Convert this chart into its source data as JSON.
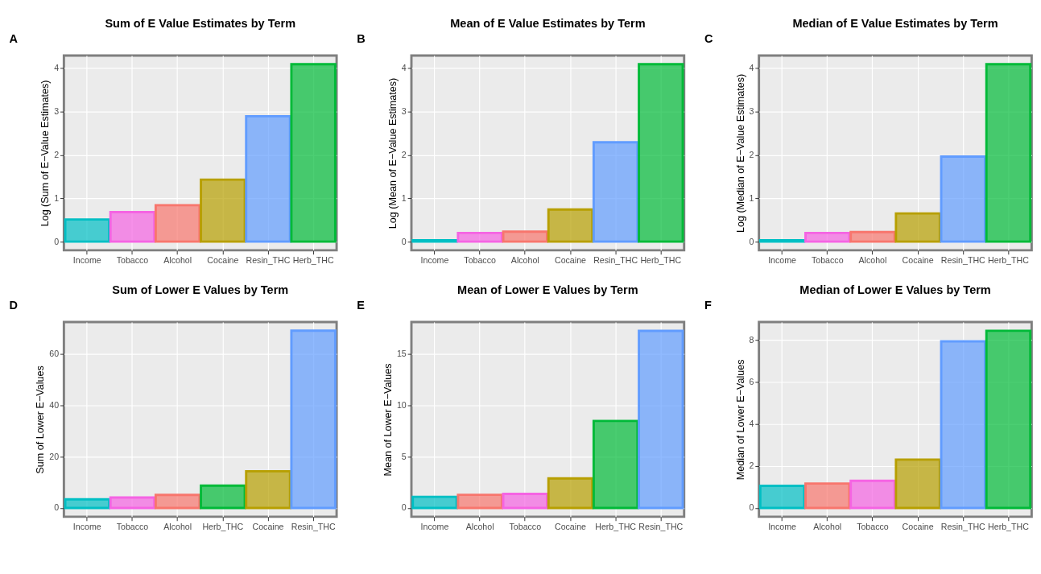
{
  "chart_data": [
    {
      "type": "bar",
      "title": "Sum of E  Value Estimates by Term",
      "ylabel": "Log (Sum of E−Value Estimates)",
      "annotations": [
        "A"
      ],
      "categories": [
        "Income",
        "Tobacco",
        "Alcohol",
        "Cocaine",
        "Resin_THC",
        "Herb_THC"
      ],
      "values": [
        0.51,
        0.68,
        0.84,
        1.43,
        2.89,
        4.09
      ],
      "colors": [
        "#00bfc4",
        "#f564e3",
        "#f8766d",
        "#b79f00",
        "#619cff",
        "#00ba38"
      ],
      "ylim": [
        -0.2,
        4.29
      ],
      "yticks": [
        0,
        1,
        2,
        3,
        4
      ],
      "grid": true
    },
    {
      "type": "bar",
      "title": "Mean of E  Value Estimates by Term",
      "ylabel": "Log (Mean of E−Value Estimates)",
      "annotations": [
        "B"
      ],
      "categories": [
        "Income",
        "Tobacco",
        "Alcohol",
        "Cocaine",
        "Resin_THC",
        "Herb_THC"
      ],
      "values": [
        0.03,
        0.2,
        0.23,
        0.74,
        2.29,
        4.09
      ],
      "colors": [
        "#00bfc4",
        "#f564e3",
        "#f8766d",
        "#b79f00",
        "#619cff",
        "#00ba38"
      ],
      "ylim": [
        -0.2,
        4.29
      ],
      "yticks": [
        0,
        1,
        2,
        3,
        4
      ],
      "grid": true
    },
    {
      "type": "bar",
      "title": "Median of E  Value Estimates by Term",
      "ylabel": "Log (Median of E−Value Estimates)",
      "annotations": [
        "C"
      ],
      "categories": [
        "Income",
        "Tobacco",
        "Alcohol",
        "Cocaine",
        "Resin_THC",
        "Herb_THC"
      ],
      "values": [
        0.03,
        0.2,
        0.22,
        0.65,
        1.96,
        4.09
      ],
      "colors": [
        "#00bfc4",
        "#f564e3",
        "#f8766d",
        "#b79f00",
        "#619cff",
        "#00ba38"
      ],
      "ylim": [
        -0.2,
        4.29
      ],
      "yticks": [
        0,
        1,
        2,
        3,
        4
      ],
      "grid": true
    },
    {
      "type": "bar",
      "title": "Sum of Lower E  Values by Term",
      "ylabel": "Sum of Lower E−Values",
      "annotations": [
        "D"
      ],
      "categories": [
        "Income",
        "Tobacco",
        "Alcohol",
        "Herb_THC",
        "Cocaine",
        "Resin_THC"
      ],
      "values": [
        3.4,
        4.1,
        5.1,
        8.7,
        14.3,
        68.9
      ],
      "colors": [
        "#00bfc4",
        "#f564e3",
        "#f8766d",
        "#00ba38",
        "#b79f00",
        "#619cff"
      ],
      "ylim": [
        -3.4,
        72.3
      ],
      "yticks": [
        0,
        20,
        40,
        60
      ],
      "grid": true
    },
    {
      "type": "bar",
      "title": "Mean of Lower E  Values by Term",
      "ylabel": "Mean of Lower E−Values",
      "annotations": [
        "E"
      ],
      "categories": [
        "Income",
        "Alcohol",
        "Tobacco",
        "Cocaine",
        "Herb_THC",
        "Resin_THC"
      ],
      "values": [
        1.08,
        1.28,
        1.37,
        2.88,
        8.47,
        17.23
      ],
      "colors": [
        "#00bfc4",
        "#f8766d",
        "#f564e3",
        "#b79f00",
        "#00ba38",
        "#619cff"
      ],
      "ylim": [
        -0.86,
        18.1
      ],
      "yticks": [
        0,
        5,
        10,
        15
      ],
      "grid": true
    },
    {
      "type": "bar",
      "title": "Median of Lower E  Values by Term",
      "ylabel": "Median of Lower E−Values",
      "annotations": [
        "F"
      ],
      "categories": [
        "Income",
        "Alcohol",
        "Tobacco",
        "Cocaine",
        "Resin_THC",
        "Herb_THC"
      ],
      "values": [
        1.05,
        1.16,
        1.29,
        2.3,
        7.93,
        8.43
      ],
      "colors": [
        "#00bfc4",
        "#f8766d",
        "#f564e3",
        "#b79f00",
        "#619cff",
        "#00ba38"
      ],
      "ylim": [
        -0.42,
        8.85
      ],
      "yticks": [
        0,
        2,
        4,
        6,
        8
      ],
      "grid": true
    }
  ]
}
